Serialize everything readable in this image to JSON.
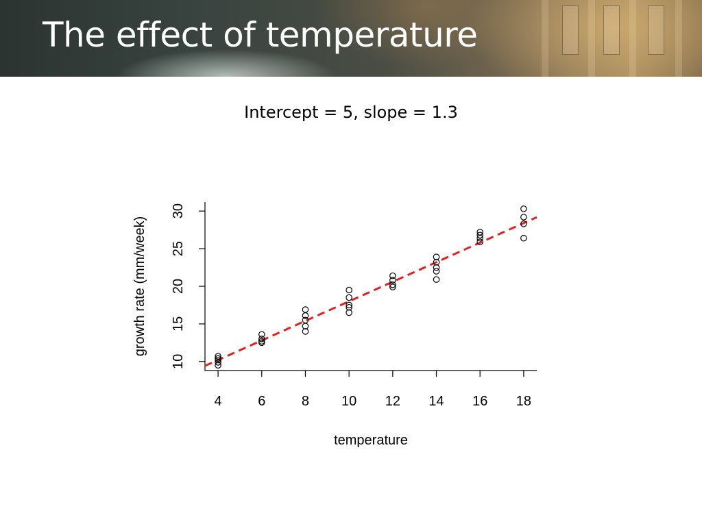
{
  "slide": {
    "title": "The effect of temperature",
    "subtitle": "Intercept = 5, slope = 1.3"
  },
  "chart_data": {
    "type": "scatter",
    "title": "",
    "xlabel": "temperature",
    "ylabel": "growth rate (mm/week)",
    "xlim": [
      3.4,
      18.6
    ],
    "ylim": [
      8.8,
      31.2
    ],
    "x_ticks": [
      4,
      6,
      8,
      10,
      12,
      14,
      16,
      18
    ],
    "y_ticks": [
      10,
      15,
      20,
      25,
      30
    ],
    "grid": false,
    "points": [
      {
        "x": 4,
        "y": 10.7
      },
      {
        "x": 4,
        "y": 10.4
      },
      {
        "x": 4,
        "y": 10.2
      },
      {
        "x": 4,
        "y": 9.9
      },
      {
        "x": 4,
        "y": 9.5
      },
      {
        "x": 6,
        "y": 13.6
      },
      {
        "x": 6,
        "y": 13.0
      },
      {
        "x": 6,
        "y": 12.7
      },
      {
        "x": 6,
        "y": 12.5
      },
      {
        "x": 8,
        "y": 16.9
      },
      {
        "x": 8,
        "y": 16.1
      },
      {
        "x": 8,
        "y": 15.5
      },
      {
        "x": 8,
        "y": 14.7
      },
      {
        "x": 8,
        "y": 14.0
      },
      {
        "x": 10,
        "y": 19.5
      },
      {
        "x": 10,
        "y": 18.5
      },
      {
        "x": 10,
        "y": 17.5
      },
      {
        "x": 10,
        "y": 17.2
      },
      {
        "x": 10,
        "y": 16.5
      },
      {
        "x": 12,
        "y": 21.4
      },
      {
        "x": 12,
        "y": 20.8
      },
      {
        "x": 12,
        "y": 20.2
      },
      {
        "x": 12,
        "y": 19.9
      },
      {
        "x": 14,
        "y": 23.9
      },
      {
        "x": 14,
        "y": 23.2
      },
      {
        "x": 14,
        "y": 22.5
      },
      {
        "x": 14,
        "y": 22.0
      },
      {
        "x": 14,
        "y": 20.9
      },
      {
        "x": 16,
        "y": 27.2
      },
      {
        "x": 16,
        "y": 26.8
      },
      {
        "x": 16,
        "y": 26.4
      },
      {
        "x": 16,
        "y": 25.9
      },
      {
        "x": 18,
        "y": 30.3
      },
      {
        "x": 18,
        "y": 29.2
      },
      {
        "x": 18,
        "y": 28.3
      },
      {
        "x": 18,
        "y": 26.4
      }
    ],
    "fit_line": {
      "intercept": 5,
      "slope": 1.3,
      "style": "dashed",
      "color": "#dd2222"
    },
    "point_color": "#000000"
  }
}
